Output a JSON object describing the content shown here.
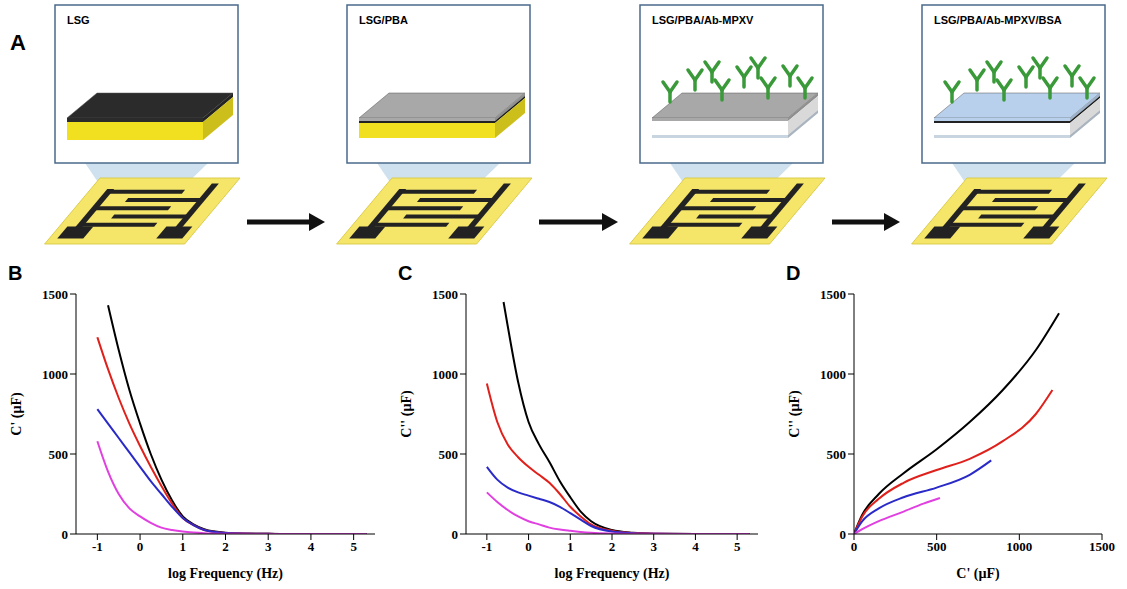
{
  "diagram": {
    "panel": "A",
    "steps": [
      "LSG",
      "LSG/PBA",
      "LSG/PBA/Ab-MPXV",
      "LSG/PBA/Ab-MPXV/BSA"
    ]
  },
  "chart_data": [
    {
      "type": "line",
      "panel": "B",
      "x_label": "log Frequency (Hz)",
      "y_label": "C' (µF)",
      "xlim": [
        -1.5,
        5.5
      ],
      "xticks": [
        -1,
        0,
        1,
        2,
        3,
        4,
        5
      ],
      "ylim": [
        0,
        1500
      ],
      "yticks": [
        0,
        500,
        1000,
        1500
      ],
      "series": [
        {
          "color": "#000000",
          "x": [
            -0.75,
            -0.5,
            -0.25,
            0,
            0.25,
            0.5,
            0.75,
            1,
            1.25,
            1.5,
            2,
            2.5,
            3,
            4,
            5,
            5.3
          ],
          "values": [
            1430,
            1150,
            900,
            690,
            500,
            340,
            210,
            110,
            60,
            30,
            8,
            3,
            1,
            0,
            0,
            0
          ]
        },
        {
          "color": "#e0201b",
          "x": [
            -1,
            -0.75,
            -0.5,
            -0.25,
            0,
            0.25,
            0.5,
            0.75,
            1,
            1.25,
            1.5,
            2,
            2.5,
            3,
            4,
            5,
            5.3
          ],
          "values": [
            1230,
            1030,
            850,
            690,
            550,
            420,
            300,
            190,
            100,
            55,
            25,
            6,
            2,
            1,
            0,
            0,
            0
          ]
        },
        {
          "color": "#2a2ac8",
          "x": [
            -1,
            -0.75,
            -0.5,
            -0.25,
            0,
            0.25,
            0.5,
            0.75,
            1,
            1.25,
            1.5,
            2,
            2.5,
            3,
            4,
            5,
            5.3
          ],
          "values": [
            780,
            690,
            600,
            510,
            420,
            330,
            250,
            170,
            100,
            55,
            25,
            6,
            2,
            1,
            0,
            0,
            0
          ]
        },
        {
          "color": "#e040e0",
          "x": [
            -1,
            -0.75,
            -0.5,
            -0.25,
            0,
            0.25,
            0.5,
            0.75,
            1,
            1.25,
            1.5,
            2,
            2.5,
            3,
            4,
            5,
            5.3
          ],
          "values": [
            580,
            390,
            250,
            160,
            110,
            70,
            40,
            25,
            15,
            9,
            5,
            2,
            1,
            0,
            0,
            0,
            0
          ]
        }
      ]
    },
    {
      "type": "line",
      "panel": "C",
      "x_label": "log Frequency (Hz)",
      "y_label": "C'' (µF)",
      "xlim": [
        -1.5,
        5.5
      ],
      "xticks": [
        -1,
        0,
        1,
        2,
        3,
        4,
        5
      ],
      "ylim": [
        0,
        1500
      ],
      "yticks": [
        0,
        500,
        1000,
        1500
      ],
      "series": [
        {
          "color": "#000000",
          "x": [
            -0.6,
            -0.5,
            -0.25,
            0,
            0.25,
            0.5,
            0.75,
            1,
            1.25,
            1.5,
            2,
            2.5,
            3,
            4,
            5,
            5.3
          ],
          "values": [
            1450,
            1300,
            950,
            700,
            560,
            450,
            330,
            230,
            140,
            80,
            25,
            8,
            2,
            0,
            0,
            0
          ]
        },
        {
          "color": "#e0201b",
          "x": [
            -1,
            -0.75,
            -0.5,
            -0.25,
            0,
            0.25,
            0.5,
            0.75,
            1,
            1.25,
            1.5,
            2,
            2.5,
            3,
            4,
            5,
            5.3
          ],
          "values": [
            940,
            700,
            560,
            480,
            420,
            370,
            320,
            250,
            170,
            110,
            60,
            20,
            6,
            2,
            0,
            0,
            0
          ]
        },
        {
          "color": "#2a2ac8",
          "x": [
            -1,
            -0.75,
            -0.5,
            -0.25,
            0,
            0.25,
            0.5,
            0.75,
            1,
            1.25,
            1.5,
            2,
            2.5,
            3,
            4,
            5,
            5.3
          ],
          "values": [
            420,
            340,
            290,
            260,
            240,
            220,
            200,
            170,
            130,
            90,
            50,
            15,
            5,
            2,
            0,
            0,
            0
          ]
        },
        {
          "color": "#e040e0",
          "x": [
            -1,
            -0.75,
            -0.5,
            -0.25,
            0,
            0.25,
            0.5,
            0.75,
            1,
            1.25,
            1.5,
            2,
            2.5,
            3,
            4,
            5,
            5.3
          ],
          "values": [
            260,
            200,
            150,
            110,
            80,
            60,
            40,
            28,
            20,
            13,
            8,
            3,
            1,
            1,
            0,
            0,
            0
          ]
        }
      ]
    },
    {
      "type": "line",
      "panel": "D",
      "x_label": "C' (µF)",
      "y_label": "C'' (µF)",
      "xlim": [
        0,
        1500
      ],
      "xticks": [
        0,
        500,
        1000,
        1500
      ],
      "ylim": [
        0,
        1500
      ],
      "yticks": [
        0,
        500,
        1000,
        1500
      ],
      "series": [
        {
          "color": "#000000",
          "x": [
            0,
            50,
            150,
            300,
            500,
            700,
            900,
            1100,
            1240
          ],
          "values": [
            0,
            120,
            250,
            380,
            530,
            700,
            900,
            1150,
            1380
          ]
        },
        {
          "color": "#e0201b",
          "x": [
            0,
            50,
            150,
            300,
            500,
            700,
            900,
            1100,
            1200
          ],
          "values": [
            0,
            110,
            220,
            320,
            400,
            470,
            580,
            750,
            900
          ]
        },
        {
          "color": "#2a2ac8",
          "x": [
            0,
            50,
            150,
            300,
            500,
            700,
            830
          ],
          "values": [
            0,
            80,
            160,
            230,
            290,
            370,
            460
          ]
        },
        {
          "color": "#e040e0",
          "x": [
            0,
            50,
            150,
            300,
            420,
            520
          ],
          "values": [
            0,
            30,
            80,
            140,
            190,
            225
          ]
        }
      ]
    }
  ]
}
